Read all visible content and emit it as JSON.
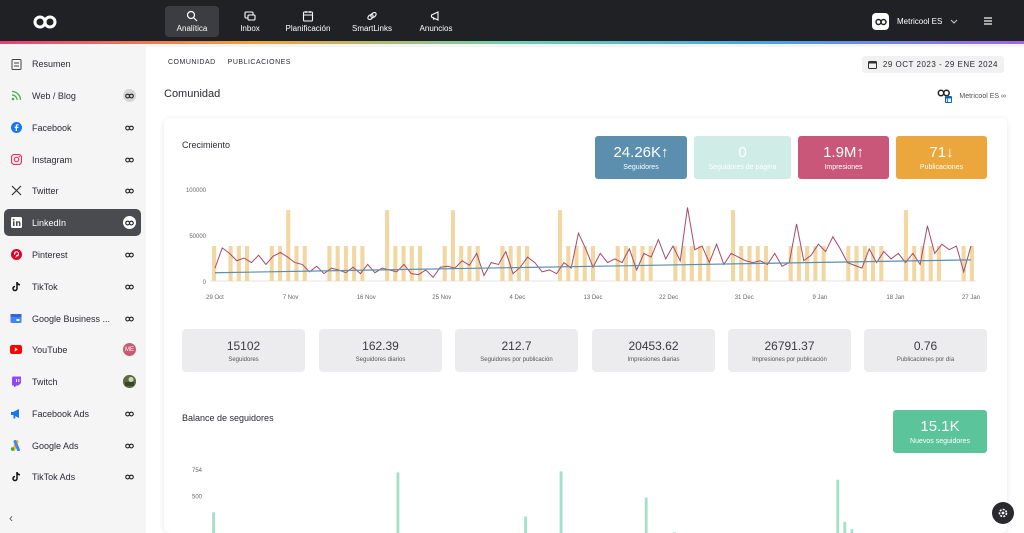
{
  "topbar": {
    "nav": [
      {
        "label": "Analítica",
        "icon": "analytics-icon"
      },
      {
        "label": "Inbox",
        "icon": "inbox-icon"
      },
      {
        "label": "Planificación",
        "icon": "calendar-icon"
      },
      {
        "label": "SmartLinks",
        "icon": "link-icon"
      },
      {
        "label": "Anuncios",
        "icon": "megaphone-icon"
      }
    ],
    "brand": "Metricool ES"
  },
  "sidebar": {
    "items": [
      {
        "label": "Resumen"
      },
      {
        "label": "Web / Blog"
      },
      {
        "label": "Facebook"
      },
      {
        "label": "Instagram"
      },
      {
        "label": "Twitter"
      },
      {
        "label": "LinkedIn"
      },
      {
        "label": "Pinterest"
      },
      {
        "label": "TikTok"
      },
      {
        "label": "Google Business ..."
      },
      {
        "label": "YouTube",
        "badge": "ME"
      },
      {
        "label": "Twitch"
      },
      {
        "label": "Facebook Ads"
      },
      {
        "label": "Google Ads"
      },
      {
        "label": "TikTok Ads"
      }
    ],
    "collapse": "‹"
  },
  "main": {
    "tabs": [
      "COMUNIDAD",
      "PUBLICACIONES"
    ],
    "date_range": "29 OCT 2023 - 29 ENE 2024",
    "title": "Comunidad",
    "account": "Metricool ES ∞"
  },
  "growth": {
    "title": "Crecimiento",
    "kpis": [
      {
        "value": "24.26K",
        "arrow": "up",
        "label": "Seguidores",
        "color": "#5b8fad"
      },
      {
        "value": "0",
        "arrow": "",
        "label": "Seguidores de página",
        "color": "#cfece6"
      },
      {
        "value": "1.9M",
        "arrow": "up",
        "label": "Impresiones",
        "color": "#c9577a"
      },
      {
        "value": "71",
        "arrow": "down",
        "label": "Publicaciones",
        "color": "#eba73c"
      }
    ],
    "stats": [
      {
        "value": "15102",
        "label": "Seguidores"
      },
      {
        "value": "162.39",
        "label": "Seguidores diarios"
      },
      {
        "value": "212.7",
        "label": "Seguidores por publicación"
      },
      {
        "value": "20453.62",
        "label": "Impresiones diarias"
      },
      {
        "value": "26791.37",
        "label": "Impresiones por publicación"
      },
      {
        "value": "0.76",
        "label": "Publicaciones por día"
      }
    ]
  },
  "balance": {
    "title": "Balance de seguidores",
    "kpi_value": "15.1K",
    "kpi_label": "Nuevos seguidores",
    "kpi_color": "#5cc49a"
  },
  "chart_data": [
    {
      "type": "bar+line",
      "title": "Crecimiento",
      "ylim": [
        0,
        100000
      ],
      "y_ticks": [
        "100000",
        "50000",
        "0"
      ],
      "x_ticks": [
        "29 Oct",
        "7 Nov",
        "16 Nov",
        "25 Nov",
        "4 Dec",
        "13 Dec",
        "22 Dec",
        "31 Dec",
        "9 Jan",
        "18 Jan",
        "27 Jan"
      ],
      "series": [
        {
          "name": "Publicaciones",
          "kind": "bar",
          "color": "#f3d7a3",
          "values": [
            1,
            0,
            1,
            1,
            1,
            0,
            0,
            1,
            1,
            1,
            1,
            1,
            0,
            0,
            1,
            1,
            1,
            1,
            1,
            0,
            0,
            1,
            1,
            1,
            1,
            1,
            0,
            0,
            1,
            1,
            1,
            1,
            1,
            0,
            0,
            1,
            1,
            1,
            1,
            0,
            0,
            0,
            1,
            1,
            1,
            1,
            1,
            0,
            0,
            1,
            1,
            1,
            1,
            1,
            0,
            0,
            1,
            1,
            1,
            1,
            1,
            0,
            0,
            1,
            1,
            1,
            1,
            1,
            0,
            0,
            1,
            1,
            1,
            1,
            1,
            0,
            0,
            1,
            1,
            1,
            1,
            1,
            0,
            0,
            1,
            1,
            1,
            1,
            1,
            0,
            0,
            1,
            1
          ]
        },
        {
          "name": "Impresiones",
          "kind": "line",
          "color": "#a54a6d",
          "values": [
            14000,
            36000,
            30000,
            22000,
            25000,
            20000,
            28000,
            18000,
            27000,
            31000,
            26000,
            20000,
            18000,
            10000,
            16000,
            8000,
            14000,
            12000,
            9000,
            15000,
            8000,
            18000,
            9000,
            14000,
            12000,
            10000,
            18000,
            8000,
            7000,
            12000,
            4000,
            15000,
            16000,
            14000,
            22000,
            17000,
            30000,
            6000,
            20000,
            18000,
            32000,
            8000,
            15000,
            26000,
            20000,
            10000,
            12000,
            8000,
            20000,
            14000,
            52000,
            35000,
            15000,
            30000,
            20000,
            24000,
            20000,
            35000,
            12000,
            30000,
            26000,
            45000,
            24000,
            38000,
            22000,
            80000,
            34000,
            38000,
            20000,
            40000,
            18000,
            30000,
            26000,
            22000,
            20000,
            22000,
            18000,
            30000,
            16000,
            20000,
            62000,
            22000,
            28000,
            40000,
            32000,
            48000,
            35000,
            20000,
            17000,
            14000,
            35000,
            20000,
            32000,
            24000,
            30000,
            20000,
            30000,
            18000,
            60000,
            30000,
            40000,
            34000,
            38000,
            10000,
            38000
          ]
        },
        {
          "name": "Seguidores",
          "kind": "line",
          "color": "#5b8fad",
          "values": [
            9000,
            23000
          ]
        }
      ]
    },
    {
      "type": "bar",
      "title": "Balance de seguidores",
      "y_ticks": [
        "754",
        "500"
      ],
      "ylim": [
        0,
        800
      ],
      "series": [
        {
          "name": "Nuevos seguidores",
          "color": "#a5e0c8",
          "values": [
            340,
            140,
            55,
            45,
            30,
            60,
            35,
            25,
            40,
            20,
            50,
            35,
            30,
            60,
            40,
            30,
            25,
            45,
            50,
            40,
            30,
            70,
            60,
            65,
            30,
            40,
            720,
            120,
            65,
            40,
            50,
            40,
            60,
            35,
            45,
            70,
            55,
            30,
            40,
            65,
            50,
            40,
            30,
            45,
            300,
            70,
            40,
            60,
            80,
            730,
            90,
            50,
            45,
            80,
            40,
            70,
            40,
            30,
            60,
            50,
            40,
            480,
            110,
            60,
            40,
            150,
            45,
            60,
            50,
            70,
            40,
            80,
            90,
            60,
            50,
            140,
            55,
            40,
            50,
            30,
            45,
            55,
            40,
            60,
            45,
            60,
            50,
            40,
            650,
            250,
            180,
            50,
            130,
            60,
            50,
            40,
            60,
            70,
            55,
            45,
            35,
            30,
            50,
            110,
            40,
            130,
            60,
            20
          ]
        }
      ]
    }
  ]
}
